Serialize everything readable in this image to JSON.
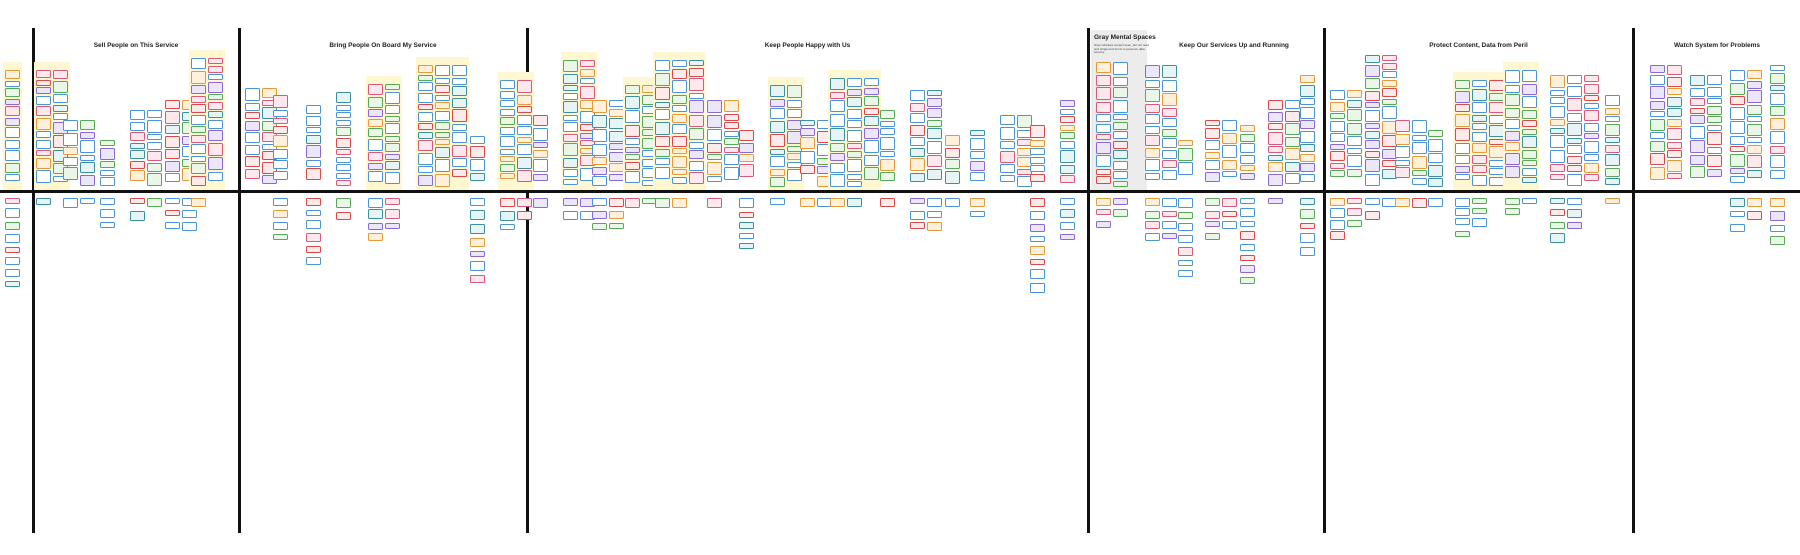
{
  "sections": [
    {
      "title": "Sell People on This Service"
    },
    {
      "title": "Bring People On Board My Service"
    },
    {
      "title": "Keep People Happy with Us"
    },
    {
      "title": "Keep Our Services Up and Running"
    },
    {
      "title": "Protect Content, Data from Peril"
    },
    {
      "title": "Watch System for Problems"
    }
  ],
  "gray_area": {
    "title": "Gray Mental Spaces",
    "subtitle": "Gray indicates content seen, but not read and stripped of terms to preserve data security"
  },
  "colors": {
    "divider": "#111111",
    "cluster_bg": "#fff7cf",
    "gray_area_bg": "#ececec",
    "blue": "#4b95d6",
    "pink": "#d85a7a",
    "green": "#58a858",
    "orange": "#e39a3a",
    "purple": "#8a6ad0",
    "teal": "#3e8f9e",
    "red": "#d84a4a"
  }
}
